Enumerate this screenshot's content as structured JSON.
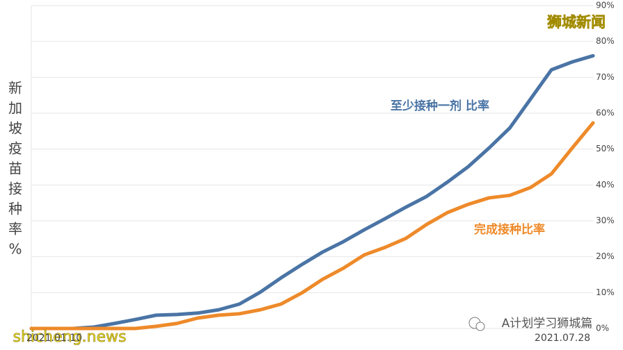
{
  "chart_data": {
    "type": "line",
    "y_label_chars": [
      "新",
      "加",
      "坡",
      "疫",
      "苗",
      "接",
      "种",
      "率",
      "%"
    ],
    "categories": [
      "2021.01.10",
      null,
      null,
      null,
      null,
      null,
      null,
      null,
      null,
      null,
      null,
      null,
      null,
      null,
      null,
      null,
      null,
      null,
      null,
      null,
      null,
      null,
      null,
      null,
      null,
      null,
      null,
      "2021.07.28"
    ],
    "series": [
      {
        "name": "至少接种一剂 比率",
        "color": "#4a74a5",
        "values": [
          0,
          0,
          0,
          0.4,
          1.4,
          2.5,
          3.7,
          3.9,
          4.3,
          5.2,
          6.8,
          10.1,
          14.1,
          17.8,
          21.3,
          24.2,
          27.5,
          30.6,
          33.8,
          36.8,
          40.8,
          45.1,
          50.3,
          55.9,
          64.0,
          72.1,
          74.3,
          76.0
        ]
      },
      {
        "name": "完成接种比率",
        "color": "#ee8a2a",
        "values": [
          0,
          0,
          0,
          0,
          0,
          0,
          0.6,
          1.4,
          2.9,
          3.7,
          4.1,
          5.2,
          6.8,
          9.9,
          13.7,
          16.8,
          20.5,
          22.6,
          25.1,
          29.0,
          32.3,
          34.6,
          36.4,
          37.1,
          39.3,
          43.1,
          50.3,
          57.3
        ]
      }
    ],
    "ylim": [
      0,
      90
    ],
    "yticks": [
      {
        "value": 0,
        "label": "0%"
      },
      {
        "value": 10,
        "label": "10%"
      },
      {
        "value": 20,
        "label": "20%"
      },
      {
        "value": 30,
        "label": "30%"
      },
      {
        "value": 40,
        "label": "40%"
      },
      {
        "value": 50,
        "label": "50%"
      },
      {
        "value": 60,
        "label": "60%"
      },
      {
        "value": 70,
        "label": "70%"
      },
      {
        "value": 80,
        "label": "80%"
      },
      {
        "value": 90,
        "label": "90%"
      }
    ],
    "grid": true,
    "watermarks": [
      "狮城新闻",
      "shicheng.news",
      "A计划学习狮城篇"
    ]
  }
}
